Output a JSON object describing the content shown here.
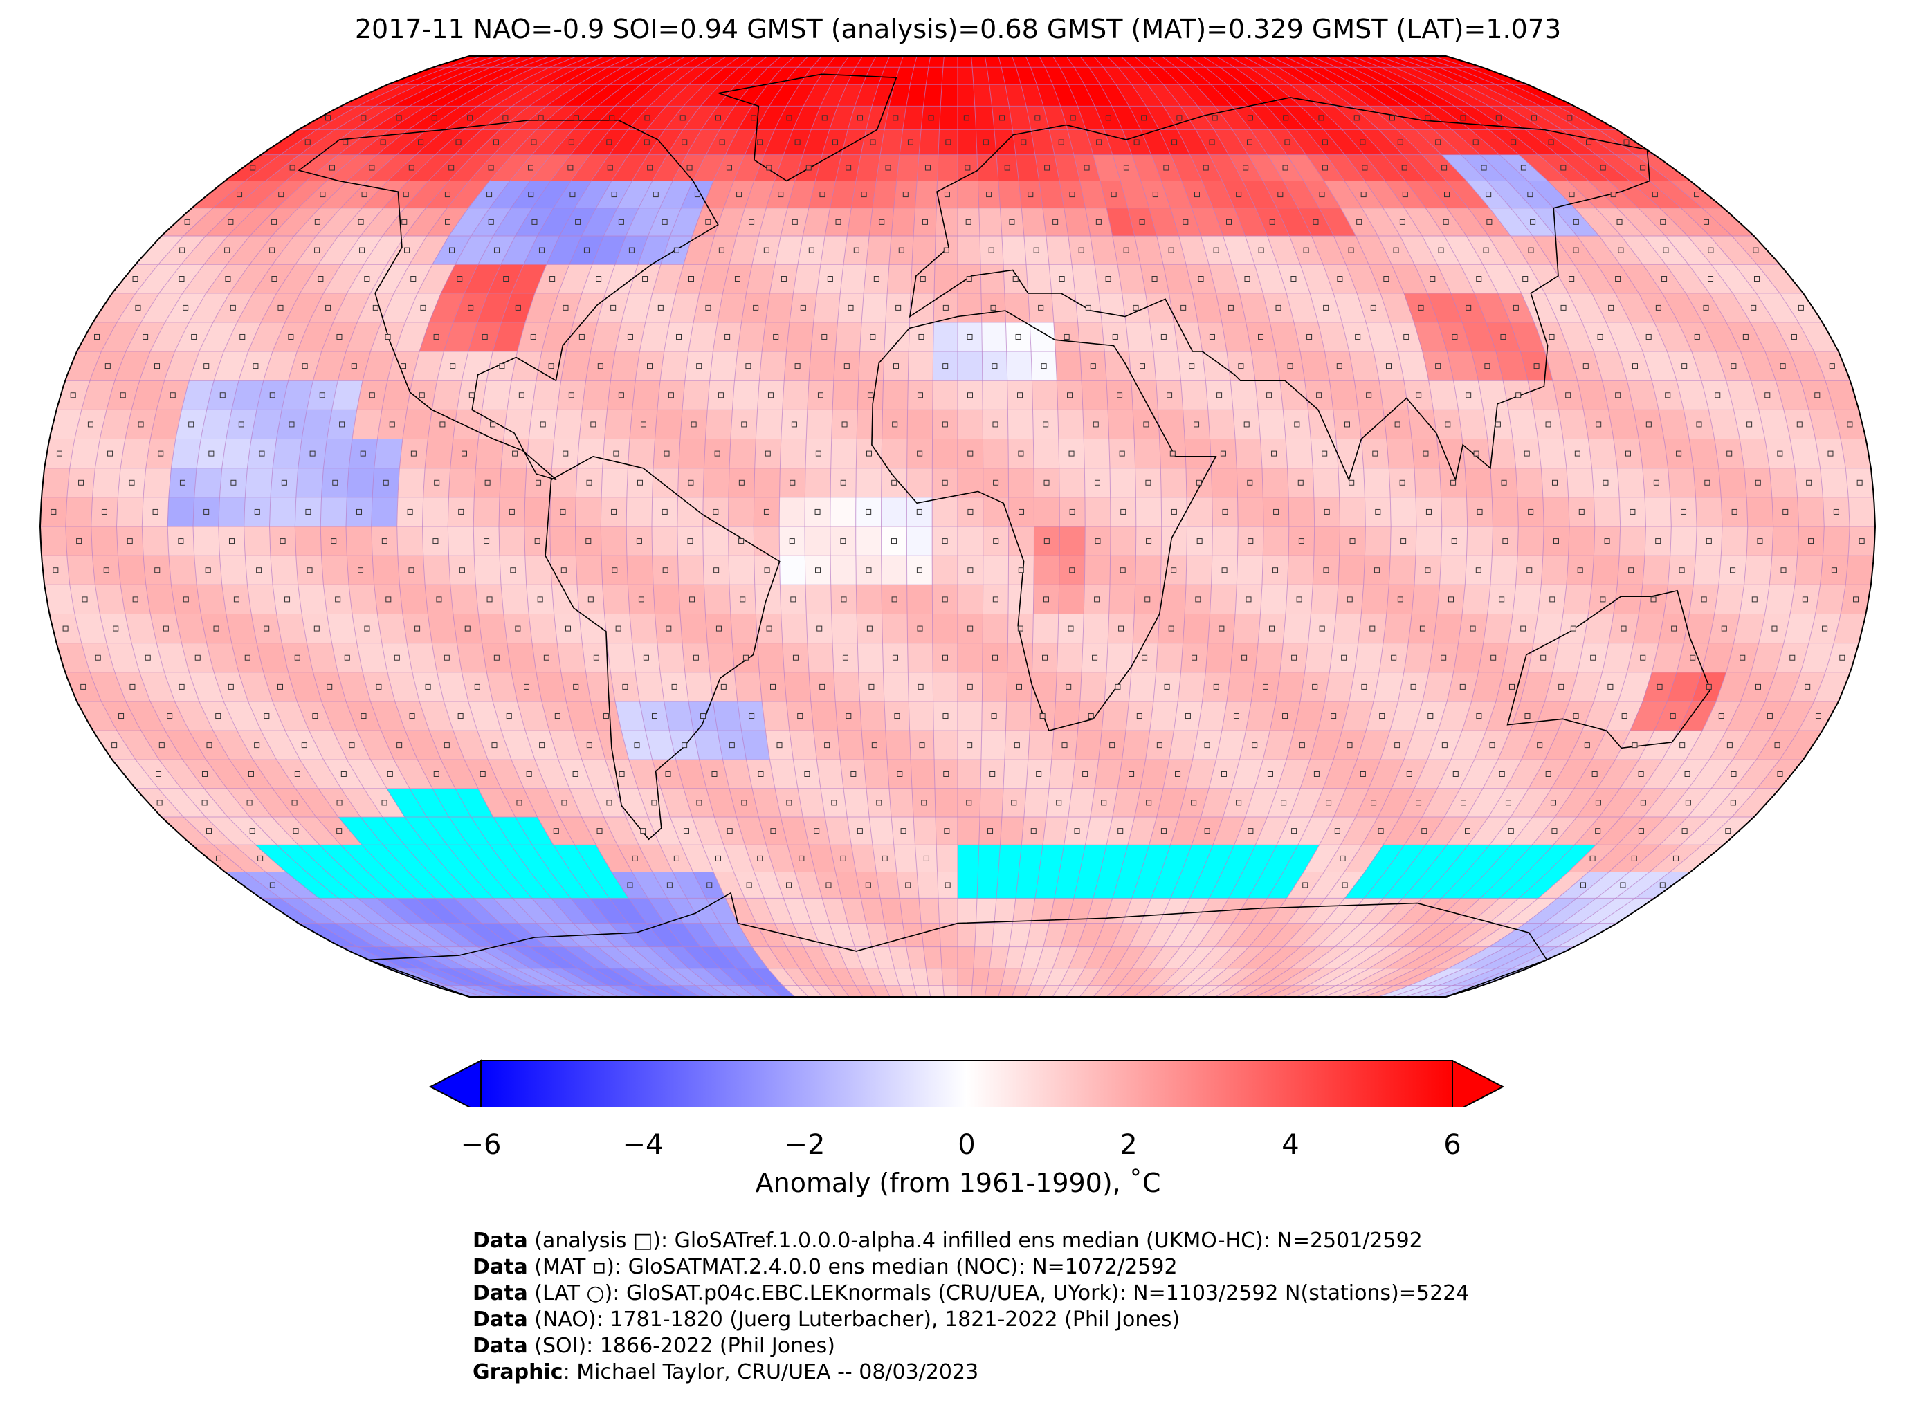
{
  "title": "2017-11 NAO=-0.9 SOI=0.94 GMST (analysis)=0.68 GMST (MAT)=0.329 GMST (LAT)=1.073",
  "map": {
    "projection": "Robinson",
    "field": "temperature anomaly",
    "missing_color": "#00ffff",
    "cmap": [
      "#0000ff",
      "#ffffff",
      "#ff0000"
    ]
  },
  "colorbar": {
    "label": "Anomaly (from 1961-1990), ˚C",
    "ticks": [
      "−6",
      "−4",
      "−2",
      "0",
      "2",
      "4",
      "6"
    ],
    "min": -6,
    "max": 6,
    "extend": "both"
  },
  "credits": [
    {
      "key": "Data",
      "text": " (analysis □): GloSATref.1.0.0.0-alpha.4 infilled ens median (UKMO-HC): N=2501/2592"
    },
    {
      "key": "Data",
      "text": " (MAT ▫): GloSATMAT.2.4.0.0 ens median (NOC): N=1072/2592"
    },
    {
      "key": "Data",
      "text": " (LAT ○): GloSAT.p04c.EBC.LEKnormals (CRU/UEA, UYork): N=1103/2592 N(stations)=5224"
    },
    {
      "key": "Data",
      "text": " (NAO): 1781-1820 (Juerg Luterbacher), 1821-2022 (Phil Jones)"
    },
    {
      "key": "Data",
      "text": " (SOI): 1866-2022 (Phil Jones)"
    },
    {
      "key": "Graphic",
      "text": ": Michael Taylor, CRU/UEA -- 08/03/2023"
    }
  ]
}
